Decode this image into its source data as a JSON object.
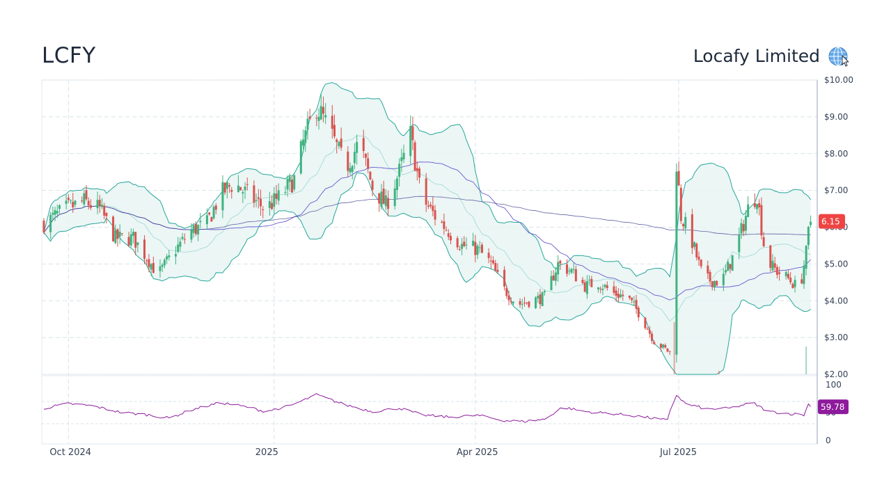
{
  "header": {
    "ticker": "LCFY",
    "company": "Locafy Limited",
    "globe_icon": "globe-icon"
  },
  "chart_data": {
    "type": "candlestick",
    "price_axis": {
      "min": 2.0,
      "max": 10.0,
      "ticks": [
        {
          "value": 10,
          "label": "$10.00"
        },
        {
          "value": 9,
          "label": "$9.00"
        },
        {
          "value": 8,
          "label": "$8.00"
        },
        {
          "value": 7,
          "label": "$7.00"
        },
        {
          "value": 6,
          "label": "$6.00"
        },
        {
          "value": 5,
          "label": "$5.00"
        },
        {
          "value": 4,
          "label": "$4.00"
        },
        {
          "value": 3,
          "label": "$3.00"
        },
        {
          "value": 2,
          "label": "$2.00"
        }
      ]
    },
    "rsi_axis": {
      "min": 0,
      "max": 100,
      "ticks": [
        {
          "value": 100,
          "label": "100"
        },
        {
          "value": 50,
          "label": "50"
        },
        {
          "value": 0,
          "label": "0"
        }
      ],
      "guides": [
        70,
        30
      ]
    },
    "time_axis": {
      "start": "2024-09-20",
      "end": "2025-08-31",
      "labels": [
        {
          "date": "2024-10-01",
          "label": "Oct 2024"
        },
        {
          "date": "2025-01-01",
          "label": "2025"
        },
        {
          "date": "2025-04-01",
          "label": "Apr 2025"
        },
        {
          "date": "2025-07-01",
          "label": "Jul 2025"
        }
      ]
    },
    "last_price": {
      "value": 6.15,
      "label": "6.15",
      "color": "#ef4444"
    },
    "last_rsi": {
      "value": 59.78,
      "label": "59.78",
      "color": "#8e1b9c"
    },
    "colors": {
      "up": "#3fb27f",
      "down": "#d9534f",
      "band": "#26a69a",
      "band_fill": "#e8f5f3",
      "sma": "#6a5acd",
      "rsi": "#8e1b9c",
      "grid": "#d7e3e8"
    },
    "close_anchors": [
      [
        "2024-09-20",
        6.1
      ],
      [
        "2024-09-30",
        6.5
      ],
      [
        "2024-10-08",
        6.7
      ],
      [
        "2024-10-15",
        6.5
      ],
      [
        "2024-10-22",
        5.7
      ],
      [
        "2024-10-30",
        5.7
      ],
      [
        "2024-11-06",
        5.1
      ],
      [
        "2024-11-10",
        4.7
      ],
      [
        "2024-11-18",
        5.4
      ],
      [
        "2024-11-25",
        5.9
      ],
      [
        "2024-12-02",
        6.1
      ],
      [
        "2024-12-08",
        6.9
      ],
      [
        "2024-12-14",
        7.2
      ],
      [
        "2024-12-22",
        6.8
      ],
      [
        "2024-12-28",
        6.5
      ],
      [
        "2025-01-03",
        6.8
      ],
      [
        "2025-01-10",
        7.3
      ],
      [
        "2025-01-14",
        8.3
      ],
      [
        "2025-01-20",
        9.3
      ],
      [
        "2025-01-26",
        8.6
      ],
      [
        "2025-02-02",
        7.6
      ],
      [
        "2025-02-08",
        8.3
      ],
      [
        "2025-02-14",
        7.1
      ],
      [
        "2025-02-20",
        6.6
      ],
      [
        "2025-02-26",
        7.5
      ],
      [
        "2025-03-03",
        8.5
      ],
      [
        "2025-03-08",
        6.8
      ],
      [
        "2025-03-14",
        6.3
      ],
      [
        "2025-03-20",
        5.9
      ],
      [
        "2025-03-26",
        5.5
      ],
      [
        "2025-04-02",
        5.4
      ],
      [
        "2025-04-08",
        5.0
      ],
      [
        "2025-04-14",
        4.3
      ],
      [
        "2025-04-20",
        3.9
      ],
      [
        "2025-04-26",
        4.0
      ],
      [
        "2025-05-02",
        4.1
      ],
      [
        "2025-05-08",
        5.0
      ],
      [
        "2025-05-14",
        4.8
      ],
      [
        "2025-05-20",
        4.4
      ],
      [
        "2025-05-26",
        4.5
      ],
      [
        "2025-06-02",
        4.2
      ],
      [
        "2025-06-08",
        4.1
      ],
      [
        "2025-06-14",
        3.6
      ],
      [
        "2025-06-20",
        2.9
      ],
      [
        "2025-06-27",
        2.6
      ],
      [
        "2025-06-29",
        8.5
      ],
      [
        "2025-07-02",
        6.3
      ],
      [
        "2025-07-06",
        5.8
      ],
      [
        "2025-07-12",
        4.6
      ],
      [
        "2025-07-20",
        4.5
      ],
      [
        "2025-07-26",
        5.3
      ],
      [
        "2025-08-01",
        6.5
      ],
      [
        "2025-08-05",
        6.9
      ],
      [
        "2025-08-09",
        5.1
      ],
      [
        "2025-08-14",
        4.8
      ],
      [
        "2025-08-19",
        4.6
      ],
      [
        "2025-08-24",
        4.3
      ],
      [
        "2025-08-27",
        5.3
      ],
      [
        "2025-08-29",
        6.4
      ],
      [
        "2025-08-31",
        6.15
      ]
    ],
    "rsi_anchors": [
      [
        "2024-09-20",
        58
      ],
      [
        "2024-10-01",
        66
      ],
      [
        "2024-10-12",
        62
      ],
      [
        "2024-10-25",
        50
      ],
      [
        "2024-11-06",
        46
      ],
      [
        "2024-11-15",
        40
      ],
      [
        "2024-11-25",
        55
      ],
      [
        "2024-12-08",
        68
      ],
      [
        "2024-12-20",
        60
      ],
      [
        "2024-12-28",
        52
      ],
      [
        "2025-01-08",
        62
      ],
      [
        "2025-01-20",
        82
      ],
      [
        "2025-02-01",
        65
      ],
      [
        "2025-02-14",
        52
      ],
      [
        "2025-02-26",
        58
      ],
      [
        "2025-03-08",
        46
      ],
      [
        "2025-03-20",
        42
      ],
      [
        "2025-04-02",
        45
      ],
      [
        "2025-04-14",
        36
      ],
      [
        "2025-04-22",
        34
      ],
      [
        "2025-05-02",
        38
      ],
      [
        "2025-05-10",
        60
      ],
      [
        "2025-05-20",
        52
      ],
      [
        "2025-06-02",
        48
      ],
      [
        "2025-06-14",
        43
      ],
      [
        "2025-06-26",
        36
      ],
      [
        "2025-06-29",
        86
      ],
      [
        "2025-07-04",
        66
      ],
      [
        "2025-07-14",
        56
      ],
      [
        "2025-07-24",
        58
      ],
      [
        "2025-08-03",
        68
      ],
      [
        "2025-08-10",
        52
      ],
      [
        "2025-08-20",
        48
      ],
      [
        "2025-08-26",
        46
      ],
      [
        "2025-08-28",
        65
      ],
      [
        "2025-08-31",
        59.78
      ]
    ],
    "volume_spikes": [
      {
        "date": "2025-06-29",
        "value": 0.75,
        "color": "#d9534f"
      },
      {
        "date": "2025-07-19",
        "value": 0.05,
        "color": "#d9534f"
      },
      {
        "date": "2025-08-27",
        "value": 0.4,
        "color": "#3fb27f"
      }
    ]
  }
}
